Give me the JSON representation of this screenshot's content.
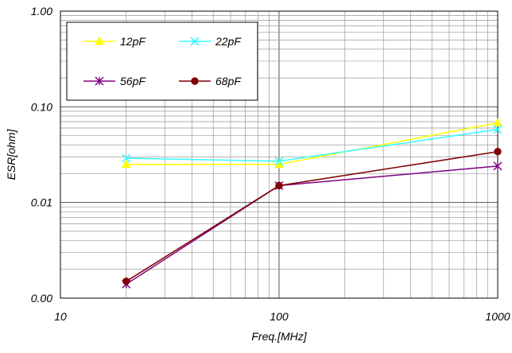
{
  "chart_data": {
    "type": "line",
    "xlabel": "Freq.[MHz]",
    "ylabel": "ESR[ohm]",
    "xscale": "log",
    "yscale": "log",
    "xlim": [
      10,
      1000
    ],
    "ylim": [
      0.001,
      1
    ],
    "x_ticks": [
      {
        "value": 10,
        "label": "10"
      },
      {
        "value": 100,
        "label": "100"
      },
      {
        "value": 1000,
        "label": "1000"
      }
    ],
    "y_ticks": [
      {
        "value": 0.001,
        "label": "0.00"
      },
      {
        "value": 0.01,
        "label": "0.01"
      },
      {
        "value": 0.1,
        "label": "0.10"
      },
      {
        "value": 1,
        "label": "1.00"
      }
    ],
    "grid": true,
    "legend_position": "top-left",
    "series": [
      {
        "name": "12pF",
        "color": "#ffff00",
        "marker": "triangle",
        "x": [
          20,
          100,
          1000
        ],
        "y": [
          0.025,
          0.025,
          0.068
        ]
      },
      {
        "name": "22pF",
        "color": "#33ffff",
        "marker": "x",
        "x": [
          20,
          100,
          1000
        ],
        "y": [
          0.029,
          0.027,
          0.058
        ]
      },
      {
        "name": "56pF",
        "color": "#800080",
        "marker": "asterisk",
        "x": [
          20,
          100,
          1000
        ],
        "y": [
          0.0014,
          0.015,
          0.024
        ]
      },
      {
        "name": "68pF",
        "color": "#800000",
        "marker": "circle",
        "x": [
          20,
          100,
          1000
        ],
        "y": [
          0.0015,
          0.015,
          0.034
        ]
      }
    ]
  }
}
